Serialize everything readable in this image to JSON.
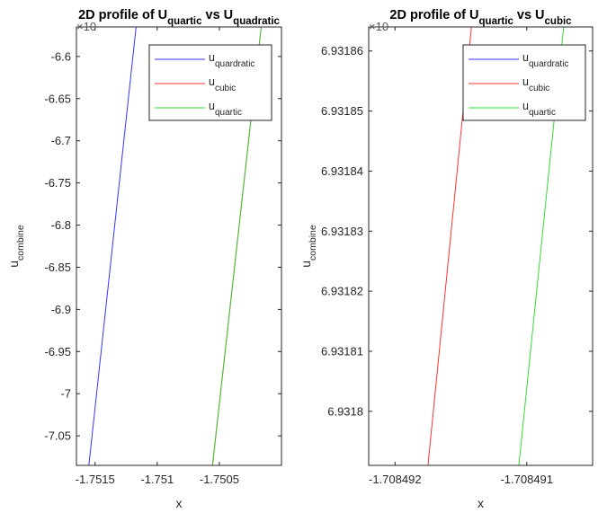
{
  "chart_data": [
    {
      "type": "line",
      "title": {
        "base": "2D profile of U",
        "sub1": "quartic",
        "mid": " vs U",
        "sub2": "quadratic"
      },
      "exponent_label": "×10",
      "xlabel": "x",
      "ylabel": {
        "base": "u",
        "sub": "combine"
      },
      "xlim": [
        -1.75165,
        -1.75
      ],
      "ylim": [
        -7.085,
        -6.565
      ],
      "xticks": [
        -1.7515,
        -1.751,
        -1.7505
      ],
      "xtick_labels": [
        "-1.7515",
        "-1.751",
        "-1.7505"
      ],
      "yticks": [
        -6.6,
        -6.65,
        -6.7,
        -6.75,
        -6.8,
        -6.85,
        -6.9,
        -6.95,
        -7.0,
        -7.05
      ],
      "ytick_labels": [
        "-6.6",
        "-6.65",
        "-6.7",
        "-6.75",
        "-6.8",
        "-6.85",
        "-6.9",
        "-6.95",
        "-7",
        "-7.05"
      ],
      "legend": {
        "position": "top-right"
      },
      "series": [
        {
          "name": {
            "base": "u",
            "sub": "quardratic"
          },
          "color": "#3333ff",
          "visible": true,
          "x": [
            -1.75155,
            -1.75117
          ],
          "y": [
            -7.085,
            -6.565
          ]
        },
        {
          "name": {
            "base": "u",
            "sub": "cubic"
          },
          "color": "#ff3333",
          "visible": true,
          "x": [
            -1.750555,
            -1.750163
          ],
          "y": [
            -7.085,
            -6.565
          ]
        },
        {
          "name": {
            "base": "u",
            "sub": "quartic"
          },
          "color": "#33cc33",
          "visible": true,
          "x": [
            -1.750555,
            -1.750163
          ],
          "y": [
            -7.085,
            -6.565
          ]
        }
      ]
    },
    {
      "type": "line",
      "title": {
        "base": "2D profile of U",
        "sub1": "quartic",
        "mid": " vs U",
        "sub2": "cubic"
      },
      "exponent_label": "×10",
      "xlabel": "x",
      "ylabel": {
        "base": "u",
        "sub": "combine"
      },
      "xlim": [
        -1.7084922,
        -1.7084905
      ],
      "ylim": [
        6.931791,
        6.931864
      ],
      "xticks": [
        -1.708492,
        -1.708491
      ],
      "xtick_labels": [
        "-1.708492",
        "-1.708491"
      ],
      "yticks": [
        6.93186,
        6.93185,
        6.93184,
        6.93183,
        6.93182,
        6.93181,
        6.9318
      ],
      "ytick_labels": [
        "6.93186",
        "6.93185",
        "6.93184",
        "6.93183",
        "6.93182",
        "6.93181",
        "6.9318"
      ],
      "legend": {
        "position": "top-right"
      },
      "series": [
        {
          "name": {
            "base": "u",
            "sub": "quardratic"
          },
          "color": "#3333ff",
          "visible": false,
          "x": [],
          "y": []
        },
        {
          "name": {
            "base": "u",
            "sub": "cubic"
          },
          "color": "#ff3333",
          "visible": true,
          "x": [
            -1.70849175,
            -1.70849142
          ],
          "y": [
            6.931791,
            6.931864
          ]
        },
        {
          "name": {
            "base": "u",
            "sub": "quartic"
          },
          "color": "#33dd33",
          "visible": true,
          "x": [
            -1.70849106,
            -1.70849072
          ],
          "y": [
            6.931791,
            6.931864
          ]
        }
      ]
    }
  ]
}
